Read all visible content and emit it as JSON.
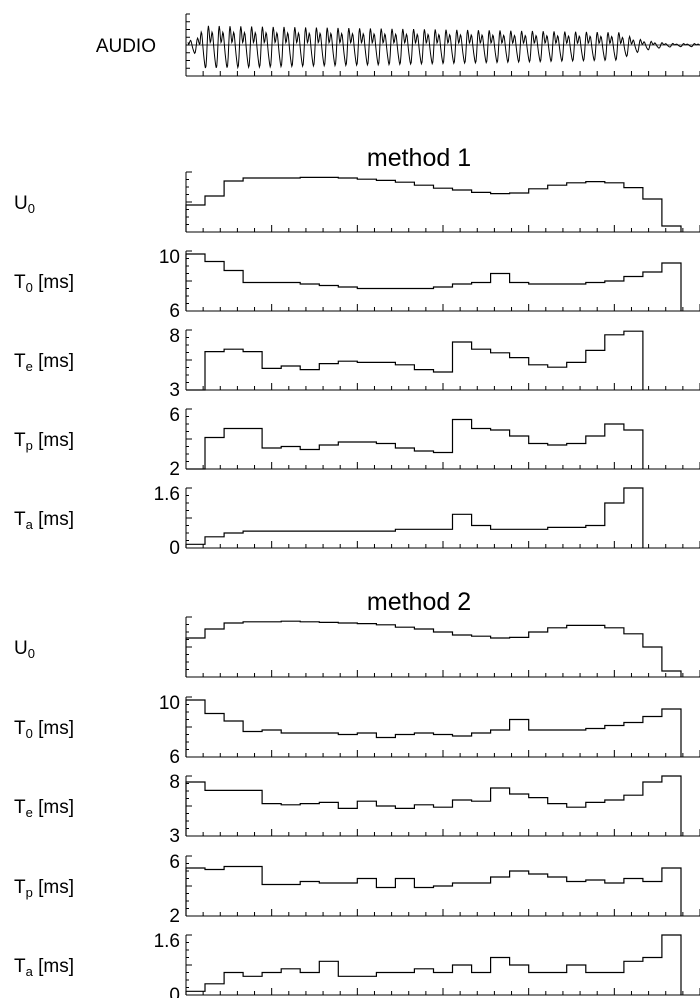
{
  "chart_data": [
    {
      "type": "line",
      "id": "audio",
      "ylabel": "AUDIO",
      "description": "speech waveform, strongly periodic oscillation decaying to near silence at the end"
    },
    {
      "type": "line",
      "id": "method1",
      "title": "method 1",
      "panels": [
        {
          "id": "u0",
          "label": "U",
          "sub": "0",
          "unit": "",
          "ylim": [
            0,
            1
          ],
          "ticks": [],
          "x": [
            0,
            1,
            2,
            3,
            4,
            5,
            6,
            7,
            8,
            9,
            10,
            11,
            12,
            13,
            14,
            15,
            16,
            17,
            18,
            19,
            20,
            21,
            22,
            23,
            24,
            25,
            26,
            27
          ],
          "values": [
            0.45,
            0.6,
            0.85,
            0.9,
            0.9,
            0.9,
            0.91,
            0.91,
            0.9,
            0.88,
            0.86,
            0.83,
            0.78,
            0.73,
            0.7,
            0.66,
            0.64,
            0.65,
            0.72,
            0.78,
            0.82,
            0.84,
            0.82,
            0.74,
            0.55,
            0.1,
            null,
            null
          ]
        },
        {
          "id": "t0",
          "label": "T",
          "sub": "0",
          "unit": " [ms]",
          "ylim": [
            6,
            10
          ],
          "ticks": [
            10,
            6
          ],
          "x": [
            0,
            1,
            2,
            3,
            4,
            5,
            6,
            7,
            8,
            9,
            10,
            11,
            12,
            13,
            14,
            15,
            16,
            17,
            18,
            19,
            20,
            21,
            22,
            23,
            24,
            25,
            26,
            27
          ],
          "values": [
            9.8,
            9.3,
            8.7,
            7.9,
            7.9,
            7.9,
            7.8,
            7.7,
            7.6,
            7.5,
            7.5,
            7.5,
            7.5,
            7.6,
            7.8,
            7.9,
            8.5,
            7.9,
            7.8,
            7.8,
            7.8,
            7.9,
            8.0,
            8.3,
            8.6,
            9.2,
            null,
            null
          ]
        },
        {
          "id": "te",
          "label": "T",
          "sub": "e",
          "unit": " [ms]",
          "ylim": [
            3,
            8
          ],
          "ticks": [
            8,
            3
          ],
          "x": [
            0,
            1,
            2,
            3,
            4,
            5,
            6,
            7,
            8,
            9,
            10,
            11,
            12,
            13,
            14,
            15,
            16,
            17,
            18,
            19,
            20,
            21,
            22,
            23,
            24,
            25,
            26,
            27
          ],
          "values": [
            3.0,
            6.2,
            6.4,
            6.2,
            4.8,
            5.0,
            4.7,
            5.2,
            5.4,
            5.3,
            5.3,
            5.1,
            4.7,
            4.5,
            7.0,
            6.4,
            6.1,
            5.7,
            5.1,
            4.9,
            5.3,
            6.3,
            7.6,
            7.9,
            null,
            null,
            null,
            null
          ]
        },
        {
          "id": "tp",
          "label": "T",
          "sub": "p",
          "unit": " [ms]",
          "ylim": [
            2,
            6
          ],
          "ticks": [
            6,
            2
          ],
          "x": [
            0,
            1,
            2,
            3,
            4,
            5,
            6,
            7,
            8,
            9,
            10,
            11,
            12,
            13,
            14,
            15,
            16,
            17,
            18,
            19,
            20,
            21,
            22,
            23,
            24,
            25,
            26,
            27
          ],
          "values": [
            2.0,
            4.1,
            4.7,
            4.7,
            3.4,
            3.5,
            3.3,
            3.6,
            3.8,
            3.8,
            3.7,
            3.4,
            3.2,
            3.1,
            5.3,
            4.7,
            4.6,
            4.2,
            3.7,
            3.6,
            3.7,
            4.2,
            5.0,
            4.6,
            null,
            null,
            null,
            null
          ]
        },
        {
          "id": "ta",
          "label": "T",
          "sub": "a",
          "unit": " [ms]",
          "ylim": [
            0,
            1.6
          ],
          "ticks": [
            1.6,
            0
          ],
          "x": [
            0,
            1,
            2,
            3,
            4,
            5,
            6,
            7,
            8,
            9,
            10,
            11,
            12,
            13,
            14,
            15,
            16,
            17,
            18,
            19,
            20,
            21,
            22,
            23,
            24,
            25,
            26,
            27
          ],
          "values": [
            0.1,
            0.3,
            0.4,
            0.45,
            0.45,
            0.45,
            0.45,
            0.45,
            0.45,
            0.45,
            0.45,
            0.5,
            0.5,
            0.5,
            0.9,
            0.6,
            0.5,
            0.5,
            0.5,
            0.55,
            0.55,
            0.6,
            1.2,
            1.6,
            null,
            null,
            null,
            null
          ]
        }
      ]
    },
    {
      "type": "line",
      "id": "method2",
      "title": "method 2",
      "panels": [
        {
          "id": "u0",
          "label": "U",
          "sub": "0",
          "unit": "",
          "ylim": [
            0,
            1
          ],
          "ticks": [],
          "x": [
            0,
            1,
            2,
            3,
            4,
            5,
            6,
            7,
            8,
            9,
            10,
            11,
            12,
            13,
            14,
            15,
            16,
            17,
            18,
            19,
            20,
            21,
            22,
            23,
            24,
            25,
            26,
            27
          ],
          "values": [
            0.65,
            0.8,
            0.9,
            0.92,
            0.92,
            0.93,
            0.92,
            0.91,
            0.9,
            0.89,
            0.87,
            0.83,
            0.8,
            0.75,
            0.7,
            0.68,
            0.65,
            0.66,
            0.75,
            0.82,
            0.86,
            0.86,
            0.82,
            0.72,
            0.5,
            0.1,
            null,
            null
          ]
        },
        {
          "id": "t0",
          "label": "T",
          "sub": "0",
          "unit": " [ms]",
          "ylim": [
            6,
            10
          ],
          "ticks": [
            10,
            6
          ],
          "x": [
            0,
            1,
            2,
            3,
            4,
            5,
            6,
            7,
            8,
            9,
            10,
            11,
            12,
            13,
            14,
            15,
            16,
            17,
            18,
            19,
            20,
            21,
            22,
            23,
            24,
            25,
            26,
            27
          ],
          "values": [
            9.8,
            8.9,
            8.4,
            7.7,
            7.8,
            7.6,
            7.6,
            7.6,
            7.5,
            7.6,
            7.3,
            7.5,
            7.6,
            7.5,
            7.4,
            7.6,
            7.8,
            8.5,
            7.8,
            7.8,
            7.8,
            7.9,
            8.1,
            8.3,
            8.7,
            9.2,
            null,
            null
          ]
        },
        {
          "id": "te",
          "label": "T",
          "sub": "e",
          "unit": " [ms]",
          "ylim": [
            3,
            8
          ],
          "ticks": [
            8,
            3
          ],
          "x": [
            0,
            1,
            2,
            3,
            4,
            5,
            6,
            7,
            8,
            9,
            10,
            11,
            12,
            13,
            14,
            15,
            16,
            17,
            18,
            19,
            20,
            21,
            22,
            23,
            24,
            25,
            26,
            27
          ],
          "values": [
            7.5,
            6.8,
            6.8,
            6.8,
            5.7,
            5.6,
            5.7,
            5.8,
            5.3,
            5.9,
            5.5,
            5.3,
            5.6,
            5.4,
            6.0,
            5.9,
            7.0,
            6.5,
            6.2,
            5.7,
            5.4,
            5.8,
            6.0,
            6.4,
            7.5,
            8.0,
            null,
            null
          ]
        },
        {
          "id": "tp",
          "label": "T",
          "sub": "p",
          "unit": " [ms]",
          "ylim": [
            2,
            6
          ],
          "ticks": [
            6,
            2
          ],
          "x": [
            0,
            1,
            2,
            3,
            4,
            5,
            6,
            7,
            8,
            9,
            10,
            11,
            12,
            13,
            14,
            15,
            16,
            17,
            18,
            19,
            20,
            21,
            22,
            23,
            24,
            25,
            26,
            27
          ],
          "values": [
            5.2,
            5.1,
            5.3,
            5.3,
            4.1,
            4.1,
            4.3,
            4.2,
            4.2,
            4.5,
            3.9,
            4.5,
            3.9,
            4.0,
            4.2,
            4.2,
            4.6,
            5.0,
            4.8,
            4.6,
            4.3,
            4.4,
            4.2,
            4.5,
            4.3,
            5.2,
            null,
            null
          ]
        },
        {
          "id": "ta",
          "label": "T",
          "sub": "a",
          "unit": " [ms]",
          "ylim": [
            0,
            1.6
          ],
          "ticks": [
            1.6,
            0
          ],
          "x": [
            0,
            1,
            2,
            3,
            4,
            5,
            6,
            7,
            8,
            9,
            10,
            11,
            12,
            13,
            14,
            15,
            16,
            17,
            18,
            19,
            20,
            21,
            22,
            23,
            24,
            25,
            26,
            27
          ],
          "values": [
            0.1,
            0.3,
            0.6,
            0.5,
            0.6,
            0.7,
            0.6,
            0.9,
            0.5,
            0.5,
            0.6,
            0.6,
            0.7,
            0.6,
            0.8,
            0.6,
            1.0,
            0.8,
            0.6,
            0.6,
            0.8,
            0.6,
            0.6,
            0.9,
            1.0,
            1.6,
            null,
            null
          ]
        }
      ]
    }
  ]
}
